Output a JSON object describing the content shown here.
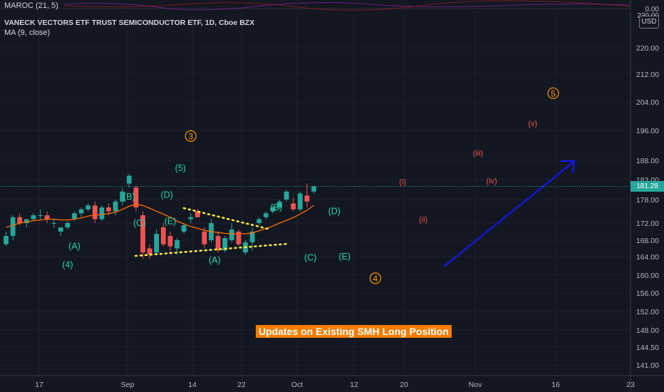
{
  "indicator": {
    "name": "MAROC (21, 5)",
    "axis_labels": [
      "0.00",
      "230.00"
    ]
  },
  "title": "VANECK VECTORS ETF TRUST SEMICONDUCTOR ETF, 1D, Cboe BZX",
  "ma_label": "MA (9, close)",
  "currency": "USD",
  "last_price": "181.28",
  "banner_text": "Updates on Existing SMH Long Position",
  "colors": {
    "background": "#131722",
    "up": "#26a69a",
    "down": "#ef5350",
    "ma": "#ff6d00",
    "grid": "#1e222d",
    "arrow": "#1515d8",
    "trendline": "#ffeb3b",
    "wave_green": "#26d9a6",
    "wave_orange": "#ff9800",
    "wave_red": "#ef5350",
    "banner": "#f57c00"
  },
  "chart_data": {
    "type": "candlestick",
    "y_ticks": [
      "141.00",
      "144.50",
      "148.00",
      "152.00",
      "156.00",
      "160.00",
      "164.00",
      "168.00",
      "172.00",
      "178.00",
      "183.00",
      "188.00",
      "196.00",
      "204.00",
      "212.00",
      "220.00"
    ],
    "x_ticks": [
      "17",
      "Sep",
      "14",
      "22",
      "Oct",
      "12",
      "20",
      "Nov",
      "16",
      "23"
    ],
    "candles": [
      {
        "o": 167,
        "h": 170,
        "l": 166.5,
        "c": 169
      },
      {
        "o": 169,
        "h": 174,
        "l": 168,
        "c": 173.5
      },
      {
        "o": 173.5,
        "h": 174.5,
        "l": 171.5,
        "c": 172
      },
      {
        "o": 172,
        "h": 173,
        "l": 171,
        "c": 173
      },
      {
        "o": 173,
        "h": 174.5,
        "l": 172.5,
        "c": 174
      },
      {
        "o": 174,
        "h": 175.5,
        "l": 173,
        "c": 174
      },
      {
        "o": 174,
        "h": 175,
        "l": 172,
        "c": 173
      },
      {
        "o": 172,
        "h": 173,
        "l": 171,
        "c": 172
      },
      {
        "o": 170,
        "h": 171,
        "l": 169,
        "c": 171
      },
      {
        "o": 171,
        "h": 172.5,
        "l": 170.5,
        "c": 172
      },
      {
        "o": 173,
        "h": 175,
        "l": 172.5,
        "c": 174.5
      },
      {
        "o": 174.5,
        "h": 176,
        "l": 173.5,
        "c": 175.5
      },
      {
        "o": 175.5,
        "h": 177,
        "l": 175,
        "c": 176.5
      },
      {
        "o": 176.5,
        "h": 177.5,
        "l": 172,
        "c": 173
      },
      {
        "o": 173,
        "h": 176.5,
        "l": 172.5,
        "c": 176
      },
      {
        "o": 176,
        "h": 177,
        "l": 174,
        "c": 175
      },
      {
        "o": 175,
        "h": 178,
        "l": 174,
        "c": 177.5
      },
      {
        "o": 177.5,
        "h": 181,
        "l": 176.5,
        "c": 180
      },
      {
        "o": 182,
        "h": 184.5,
        "l": 181,
        "c": 184
      },
      {
        "o": 181,
        "h": 181.5,
        "l": 175,
        "c": 176
      },
      {
        "o": 174,
        "h": 175,
        "l": 163.5,
        "c": 165
      },
      {
        "o": 166,
        "h": 167,
        "l": 163.5,
        "c": 164.5
      },
      {
        "o": 165,
        "h": 170.5,
        "l": 164.5,
        "c": 169.5
      },
      {
        "o": 171,
        "h": 172,
        "l": 166.5,
        "c": 167
      },
      {
        "o": 169,
        "h": 170,
        "l": 165,
        "c": 166.5
      },
      {
        "o": 166,
        "h": 168.5,
        "l": 164.5,
        "c": 168
      },
      {
        "o": 170,
        "h": 172,
        "l": 169.5,
        "c": 171.5
      },
      {
        "o": 173,
        "h": 174.5,
        "l": 172,
        "c": 173.5
      },
      {
        "o": 175,
        "h": 175.5,
        "l": 173.5,
        "c": 173.5
      },
      {
        "o": 170,
        "h": 171,
        "l": 166,
        "c": 167
      },
      {
        "o": 168,
        "h": 173,
        "l": 167.5,
        "c": 172
      },
      {
        "o": 169,
        "h": 170,
        "l": 165,
        "c": 165.5
      },
      {
        "o": 165.5,
        "h": 169,
        "l": 165,
        "c": 168.5
      },
      {
        "o": 168,
        "h": 172,
        "l": 167.5,
        "c": 170.5
      },
      {
        "o": 170,
        "h": 170.5,
        "l": 166.5,
        "c": 167
      },
      {
        "o": 165,
        "h": 168,
        "l": 164.5,
        "c": 167.5
      },
      {
        "o": 167.5,
        "h": 171,
        "l": 165.5,
        "c": 170
      },
      {
        "o": 172,
        "h": 173.5,
        "l": 171.5,
        "c": 173
      },
      {
        "o": 173.5,
        "h": 175,
        "l": 173,
        "c": 174.5
      },
      {
        "o": 175,
        "h": 176.5,
        "l": 174.5,
        "c": 176
      },
      {
        "o": 176,
        "h": 178,
        "l": 175.5,
        "c": 177.5
      },
      {
        "o": 178,
        "h": 180.5,
        "l": 177.5,
        "c": 180
      },
      {
        "o": 177,
        "h": 178.5,
        "l": 175,
        "c": 175.5
      },
      {
        "o": 175.5,
        "h": 180,
        "l": 175,
        "c": 179.5
      },
      {
        "o": 179,
        "h": 182,
        "l": 176,
        "c": 177.5
      },
      {
        "o": 180,
        "h": 181.5,
        "l": 179.5,
        "c": 181.28
      }
    ],
    "ma": [
      171,
      171.5,
      172,
      172.3,
      172.6,
      172.8,
      173,
      173,
      172.8,
      172.8,
      173,
      173.3,
      173.8,
      174,
      174.2,
      174.4,
      174.8,
      175.5,
      176.3,
      176.8,
      176.5,
      175.8,
      175,
      174.3,
      173.5,
      172.5,
      171.8,
      171.2,
      170.8,
      170.3,
      170,
      169.8,
      169.6,
      169.5,
      169.5,
      169.5,
      169.7,
      170.2,
      170.7,
      171.3,
      172,
      172.7,
      173.4,
      174.3,
      175.3,
      176.5
    ]
  },
  "annotations": [
    {
      "text": "(A)",
      "color": "green",
      "day": 10,
      "price": 166.5
    },
    {
      "text": "(4)",
      "color": "green",
      "day": 9,
      "price": 162.2
    },
    {
      "text": "(B)",
      "color": "green",
      "day": 18,
      "price": 178.7
    },
    {
      "text": "(C)",
      "color": "green",
      "day": 19.5,
      "price": 172
    },
    {
      "text": "(D)",
      "color": "green",
      "day": 23.5,
      "price": 179.2
    },
    {
      "text": "(E)",
      "color": "green",
      "day": 24,
      "price": 172.5
    },
    {
      "text": "(5)",
      "color": "green",
      "day": 25.5,
      "price": 186
    },
    {
      "text": "(A)",
      "color": "green",
      "day": 30.5,
      "price": 163.2
    },
    {
      "text": "(B)",
      "color": "green",
      "day": 39.5,
      "price": 176
    },
    {
      "text": "(C)",
      "color": "green",
      "day": 44.5,
      "price": 163.8
    },
    {
      "text": "(D)",
      "color": "green",
      "day": 48,
      "price": 175
    },
    {
      "text": "(E)",
      "color": "green",
      "day": 49.5,
      "price": 164
    },
    {
      "text": "3",
      "color": "orange",
      "day": 27,
      "price": 194.5
    },
    {
      "text": "4",
      "color": "orange",
      "day": 54,
      "price": 159.3
    },
    {
      "text": "5",
      "color": "orange",
      "day": 80,
      "price": 206.5
    },
    {
      "text": "(i)",
      "color": "red",
      "day": 58,
      "price": 182.5
    },
    {
      "text": "(ii)",
      "color": "red",
      "day": 61,
      "price": 173
    },
    {
      "text": "(iii)",
      "color": "red",
      "day": 69,
      "price": 190
    },
    {
      "text": "(iv)",
      "color": "red",
      "day": 71,
      "price": 182.7
    },
    {
      "text": "(v)",
      "color": "red",
      "day": 77,
      "price": 198
    }
  ]
}
